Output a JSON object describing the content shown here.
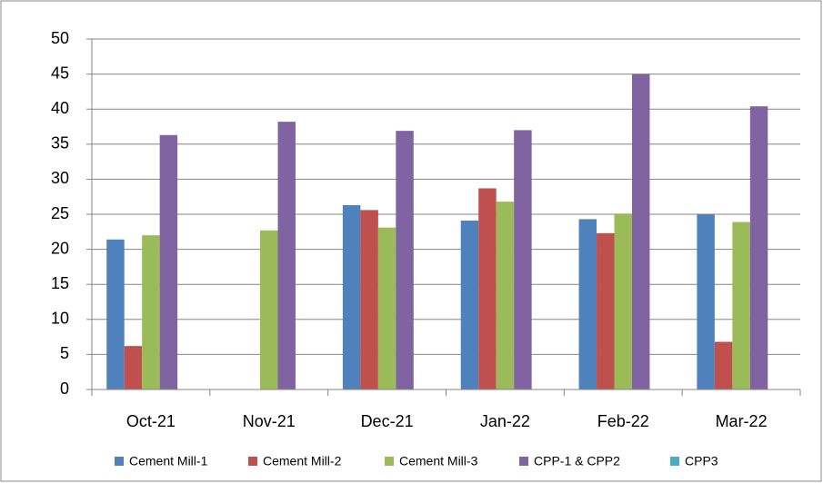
{
  "chart_data": {
    "type": "bar",
    "categories": [
      "Oct-21",
      "Nov-21",
      "Dec-21",
      "Jan-22",
      "Feb-22",
      "Mar-22"
    ],
    "series": [
      {
        "name": "Cement Mill-1",
        "color": "#4f81bd",
        "values": [
          21.4,
          0,
          26.3,
          24.1,
          24.3,
          25.0
        ]
      },
      {
        "name": "Cement Mill-2",
        "color": "#c0504d",
        "values": [
          6.2,
          0,
          25.6,
          28.7,
          22.3,
          6.8
        ]
      },
      {
        "name": "Cement Mill-3",
        "color": "#9bbb59",
        "values": [
          22.0,
          22.7,
          23.1,
          26.8,
          25.1,
          23.9
        ]
      },
      {
        "name": "CPP-1 & CPP2",
        "color": "#8064a2",
        "values": [
          36.3,
          38.2,
          36.9,
          37.0,
          45.0,
          40.4
        ]
      },
      {
        "name": "CPP3",
        "color": "#4bacc6",
        "values": [
          0,
          0,
          0,
          0,
          0,
          0
        ]
      }
    ],
    "ylim": [
      0,
      50
    ],
    "yticks": [
      0,
      5,
      10,
      15,
      20,
      25,
      30,
      35,
      40,
      45,
      50
    ],
    "grid": true,
    "legend": "bottom"
  }
}
